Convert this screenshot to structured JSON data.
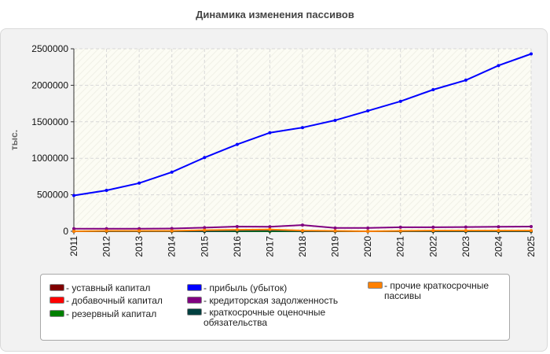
{
  "title": "Динамика изменения пассивов",
  "chart_data": {
    "type": "line",
    "title": "Динамика изменения пассивов",
    "xlabel": "",
    "ylabel": "тыс.",
    "ylim": [
      0,
      2500000
    ],
    "yticks": [
      "0",
      "500000",
      "1000000",
      "1500000",
      "2000000",
      "2500000"
    ],
    "ytick_values": [
      0,
      500000,
      1000000,
      1500000,
      2000000,
      2500000
    ],
    "categories": [
      "2011",
      "2012",
      "2013",
      "2014",
      "2015",
      "2016",
      "2017",
      "2018",
      "2019",
      "2020",
      "2021",
      "2022",
      "2023",
      "2024",
      "2025"
    ],
    "grid": true,
    "legend_position": "bottom",
    "series": [
      {
        "name": "уставный капитал",
        "color": "#7f0000",
        "values": [
          10,
          10,
          10,
          10,
          10,
          10,
          10,
          10,
          10,
          10,
          10,
          10,
          10,
          10,
          10
        ]
      },
      {
        "name": "добавочный капитал",
        "color": "#ff0000",
        "values": [
          0,
          0,
          0,
          0,
          0,
          0,
          0,
          0,
          0,
          0,
          0,
          0,
          0,
          0,
          0
        ]
      },
      {
        "name": "резервный капитал",
        "color": "#008000",
        "values": [
          500,
          500,
          500,
          500,
          500,
          500,
          500,
          500,
          500,
          500,
          500,
          500,
          500,
          500,
          500
        ]
      },
      {
        "name": "прибыль (убыток)",
        "color": "#0000ff",
        "values": [
          490000,
          560000,
          660000,
          810000,
          1010000,
          1190000,
          1350000,
          1420000,
          1520000,
          1650000,
          1780000,
          1940000,
          2070000,
          2270000,
          2430000
        ]
      },
      {
        "name": "кредиторская задолженность",
        "color": "#800080",
        "values": [
          35000,
          35000,
          35000,
          38000,
          50000,
          65000,
          62000,
          85000,
          45000,
          45000,
          55000,
          55000,
          58000,
          62000,
          65000
        ]
      },
      {
        "name": "краткосрочные оценочные обязательства",
        "color": "#004040",
        "values": [
          0,
          0,
          0,
          0,
          0,
          5000,
          10000,
          0,
          0,
          0,
          0,
          0,
          0,
          0,
          0
        ]
      },
      {
        "name": "прочие краткосрочные пассивы",
        "color": "#ff8000",
        "values": [
          0,
          5000,
          5000,
          5000,
          15000,
          20000,
          25000,
          10000,
          5000,
          0,
          5000,
          10000,
          10000,
          10000,
          10000
        ]
      }
    ]
  },
  "legend": [
    {
      "label": "- уставный капитал",
      "color": "#7f0000"
    },
    {
      "label": "- добавочный капитал",
      "color": "#ff0000"
    },
    {
      "label": "- резервный капитал",
      "color": "#008000"
    },
    {
      "label": "- прибыль (убыток)",
      "color": "#0000ff"
    },
    {
      "label": "- кредиторская задолженность",
      "color": "#800080"
    },
    {
      "label": "- краткосрочные оценочные обязательства",
      "color": "#004040"
    },
    {
      "label": "- прочие краткосрочные пассивы",
      "color": "#ff8000"
    }
  ]
}
